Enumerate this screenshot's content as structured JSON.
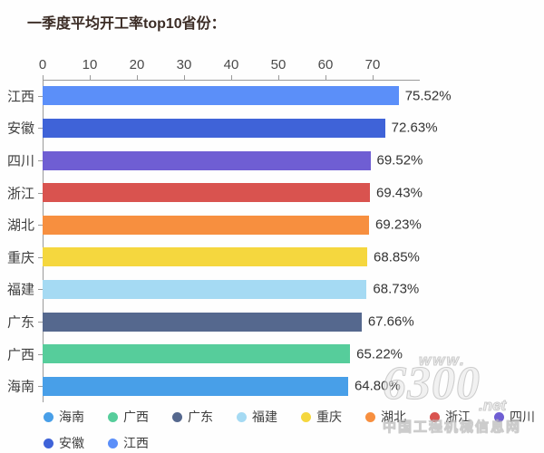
{
  "title": "一季度平均开工率top10省份：",
  "chart_data": {
    "type": "bar",
    "orientation": "horizontal",
    "title": "一季度平均开工率top10省份：",
    "xlabel": "",
    "ylabel": "",
    "xlim": [
      0,
      80
    ],
    "x_ticks": [
      0,
      10,
      20,
      30,
      40,
      50,
      60,
      70
    ],
    "grid": false,
    "legend_position": "bottom",
    "categories": [
      "江西",
      "安徽",
      "四川",
      "浙江",
      "湖北",
      "重庆",
      "福建",
      "广东",
      "广西",
      "海南"
    ],
    "values": [
      75.52,
      72.63,
      69.52,
      69.43,
      69.23,
      68.85,
      68.73,
      67.66,
      65.22,
      64.8
    ],
    "value_labels": [
      "75.52%",
      "72.63%",
      "69.52%",
      "69.43%",
      "69.23%",
      "68.85%",
      "68.73%",
      "67.66%",
      "65.22%",
      "64.80%"
    ],
    "bar_colors": [
      "#5b8ff9",
      "#3f63d8",
      "#6f5ed3",
      "#d9534f",
      "#f78f3f",
      "#f5d73e",
      "#a5daf3",
      "#55688e",
      "#56cd9b",
      "#489fe8"
    ],
    "legend": [
      {
        "label": "海南",
        "color": "#489fe8"
      },
      {
        "label": "广西",
        "color": "#56cd9b"
      },
      {
        "label": "广东",
        "color": "#55688e"
      },
      {
        "label": "福建",
        "color": "#a5daf3"
      },
      {
        "label": "重庆",
        "color": "#f5d73e"
      },
      {
        "label": "湖北",
        "color": "#f78f3f"
      },
      {
        "label": "浙江",
        "color": "#d9534f"
      },
      {
        "label": "四川",
        "color": "#6f5ed3"
      },
      {
        "label": "安徽",
        "color": "#3f63d8"
      },
      {
        "label": "江西",
        "color": "#5b8ff9"
      }
    ]
  },
  "watermark": {
    "www": "www.",
    "number": "6300",
    "net": ".net",
    "site_name": "中国工程机械信息网"
  }
}
